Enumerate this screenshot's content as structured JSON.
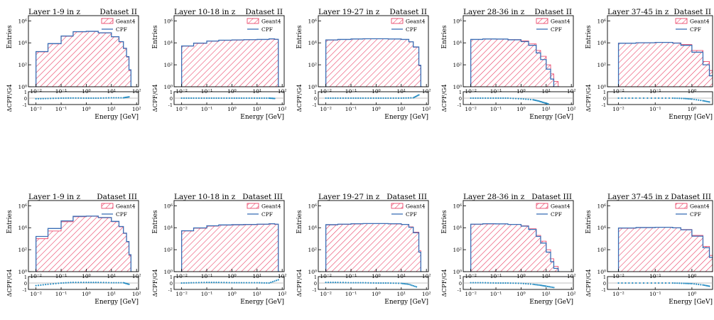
{
  "figure": {
    "row_datasets": [
      "Dataset II",
      "Dataset III"
    ],
    "layer_titles": [
      "Layer 1-9 in z",
      "Layer 10-18 in z",
      "Layer 19-27 in z",
      "Layer 28-36 in z",
      "Layer 37-45 in z"
    ],
    "main_ylabel": "Entries",
    "ratio_ylabel": "ΔCPF/G4",
    "xlabel": "Energy [GeV]",
    "legend": [
      {
        "name": "Geant4",
        "style": "hatched",
        "color": "#e8335a"
      },
      {
        "name": "CPF",
        "style": "line",
        "color": "#3b6fb6"
      }
    ],
    "ratio_marker_color": "#2a8fc4",
    "main_ytick_labels": [
      "10⁰",
      "10²",
      "10⁴",
      "10⁶"
    ],
    "ratio_ytick_labels": [
      "-1",
      "0",
      "1"
    ],
    "xtick_labels": [
      "10⁻²",
      "10⁻¹",
      "10⁰",
      "10¹",
      "10²"
    ]
  },
  "chart_data": [
    {
      "type": "area",
      "title": "Layer 1-9 in z",
      "dataset": "Dataset II",
      "xlabel": "Energy [GeV]",
      "ylabel": "Entries",
      "xscale": "log",
      "yscale": "log",
      "xlim": [
        0.005,
        120
      ],
      "ylim": [
        1,
        3000000
      ],
      "x": [
        0.01,
        0.03,
        0.1,
        0.3,
        1,
        3,
        10,
        20,
        30,
        40,
        50,
        60
      ],
      "series": [
        {
          "name": "Geant4",
          "values": [
            1500,
            8000,
            40000,
            100000,
            110000,
            80000,
            35000,
            12000,
            3000,
            500,
            30,
            1
          ]
        },
        {
          "name": "CPF",
          "values": [
            1600,
            8500,
            42000,
            105000,
            112000,
            82000,
            36000,
            13000,
            3200,
            550,
            35,
            1
          ]
        }
      ],
      "ratio": {
        "ylabel": "ΔCPF/G4",
        "ylim": [
          -1,
          1
        ],
        "x": [
          0.01,
          0.03,
          0.1,
          0.3,
          1,
          3,
          10,
          30,
          50
        ],
        "values": [
          -0.1,
          -0.05,
          0.0,
          0.02,
          0.0,
          0.0,
          0.05,
          0.05,
          0.2
        ]
      }
    },
    {
      "type": "area",
      "title": "Layer 10-18 in z",
      "dataset": "Dataset II",
      "xlabel": "Energy [GeV]",
      "ylabel": "Entries",
      "xscale": "log",
      "yscale": "log",
      "xlim": [
        0.005,
        120
      ],
      "ylim": [
        1,
        3000000
      ],
      "x": [
        0.01,
        0.03,
        0.1,
        0.3,
        1,
        3,
        10,
        30,
        50,
        70
      ],
      "series": [
        {
          "name": "Geant4",
          "values": [
            5000,
            9000,
            14000,
            17000,
            18000,
            19000,
            20000,
            22000,
            20000,
            1
          ]
        },
        {
          "name": "CPF",
          "values": [
            5200,
            9500,
            14500,
            17500,
            18500,
            19500,
            20500,
            23000,
            21000,
            1
          ]
        }
      ],
      "ratio": {
        "ylabel": "ΔCPF/G4",
        "ylim": [
          -1,
          1
        ],
        "x": [
          0.01,
          0.03,
          0.1,
          0.3,
          1,
          3,
          10,
          30,
          50
        ],
        "values": [
          0.0,
          0.0,
          0.0,
          0.0,
          0.0,
          0.0,
          0.0,
          0.0,
          -0.05
        ]
      }
    },
    {
      "type": "area",
      "title": "Layer 19-27 in z",
      "dataset": "Dataset II",
      "xlabel": "Energy [GeV]",
      "ylabel": "Entries",
      "xscale": "log",
      "yscale": "log",
      "xlim": [
        0.005,
        120
      ],
      "ylim": [
        1,
        3000000
      ],
      "x": [
        0.01,
        0.03,
        0.1,
        0.3,
        1,
        3,
        10,
        20,
        30,
        50,
        60
      ],
      "series": [
        {
          "name": "Geant4",
          "values": [
            18000,
            20000,
            22000,
            23000,
            23000,
            22000,
            20000,
            12000,
            4000,
            80,
            1
          ]
        },
        {
          "name": "CPF",
          "values": [
            18500,
            20500,
            22500,
            23500,
            23500,
            22500,
            20500,
            12500,
            4200,
            90,
            1
          ]
        }
      ],
      "ratio": {
        "ylabel": "ΔCPF/G4",
        "ylim": [
          -1,
          1
        ],
        "x": [
          0.01,
          0.03,
          0.1,
          0.3,
          1,
          3,
          10,
          30,
          50
        ],
        "values": [
          0.0,
          0.0,
          0.0,
          0.0,
          0.0,
          0.0,
          0.0,
          0.05,
          0.5
        ]
      }
    },
    {
      "type": "area",
      "title": "Layer 28-36 in z",
      "dataset": "Dataset II",
      "xlabel": "Energy [GeV]",
      "ylabel": "Entries",
      "xscale": "log",
      "yscale": "log",
      "xlim": [
        0.005,
        120
      ],
      "ylim": [
        1,
        3000000
      ],
      "x": [
        0.01,
        0.03,
        0.1,
        0.3,
        1,
        2,
        4,
        6,
        10,
        15,
        20,
        30
      ],
      "series": [
        {
          "name": "Geant4",
          "values": [
            20000,
            22000,
            22000,
            20000,
            15000,
            8000,
            2000,
            600,
            100,
            15,
            3,
            1
          ]
        },
        {
          "name": "CPF",
          "values": [
            20500,
            22500,
            22000,
            19000,
            13000,
            6000,
            1200,
            300,
            40,
            5,
            1,
            1
          ]
        }
      ],
      "ratio": {
        "ylabel": "ΔCPF/G4",
        "ylim": [
          -1,
          1
        ],
        "x": [
          0.01,
          0.03,
          0.1,
          0.3,
          1,
          3,
          5,
          8,
          12
        ],
        "values": [
          0.0,
          0.0,
          0.0,
          0.0,
          -0.1,
          -0.25,
          -0.45,
          -0.7,
          -0.9
        ]
      }
    },
    {
      "type": "area",
      "title": "Layer 37-45 in z",
      "dataset": "Dataset II",
      "xlabel": "Energy [GeV]",
      "ylabel": "Entries",
      "xscale": "log",
      "yscale": "log",
      "xlim": [
        0.005,
        5
      ],
      "x": [
        0.01,
        0.03,
        0.1,
        0.3,
        0.5,
        1,
        2,
        3,
        4
      ],
      "series": [
        {
          "name": "Geant4",
          "values": [
            9000,
            10000,
            11000,
            10000,
            7000,
            2000,
            200,
            30,
            5
          ]
        },
        {
          "name": "CPF",
          "values": [
            9200,
            10200,
            11000,
            9500,
            6000,
            1400,
            100,
            10,
            2
          ]
        }
      ],
      "ratio": {
        "ylabel": "ΔCPF/G4",
        "ylim": [
          -1,
          1
        ],
        "x": [
          0.01,
          0.03,
          0.1,
          0.3,
          0.6,
          1,
          2,
          3
        ],
        "values": [
          0.0,
          0.0,
          0.0,
          0.0,
          -0.05,
          -0.15,
          -0.4,
          -0.6
        ]
      }
    },
    {
      "type": "area",
      "title": "Layer 1-9 in z",
      "dataset": "Dataset III",
      "xlabel": "Energy [GeV]",
      "ylabel": "Entries",
      "xscale": "log",
      "yscale": "log",
      "xlim": [
        0.005,
        120
      ],
      "ylim": [
        1,
        3000000
      ],
      "x": [
        0.01,
        0.03,
        0.1,
        0.3,
        1,
        3,
        10,
        20,
        30,
        40,
        50,
        60
      ],
      "series": [
        {
          "name": "Geant4",
          "values": [
            1000,
            5000,
            35000,
            100000,
            110000,
            80000,
            35000,
            12000,
            3000,
            500,
            30,
            1
          ]
        },
        {
          "name": "CPF",
          "values": [
            1600,
            8500,
            42000,
            110000,
            115000,
            85000,
            38000,
            13000,
            3200,
            550,
            35,
            1
          ]
        }
      ],
      "ratio": {
        "ylabel": "ΔCPF/G4",
        "ylim": [
          -1,
          1
        ],
        "x": [
          0.01,
          0.03,
          0.1,
          0.3,
          1,
          3,
          10,
          30,
          50
        ],
        "values": [
          -0.4,
          -0.2,
          0.0,
          0.1,
          0.1,
          0.1,
          0.05,
          0.05,
          -0.2
        ]
      }
    },
    {
      "type": "area",
      "title": "Layer 10-18 in z",
      "dataset": "Dataset III",
      "xlabel": "Energy [GeV]",
      "ylabel": "Entries",
      "xscale": "log",
      "yscale": "log",
      "xlim": [
        0.005,
        120
      ],
      "ylim": [
        1,
        3000000
      ],
      "x": [
        0.01,
        0.03,
        0.1,
        0.3,
        1,
        3,
        10,
        30,
        50,
        70
      ],
      "series": [
        {
          "name": "Geant4",
          "values": [
            5000,
            9000,
            14000,
            17000,
            18000,
            19000,
            20000,
            22000,
            20000,
            1
          ]
        },
        {
          "name": "CPF",
          "values": [
            5300,
            9600,
            15000,
            18000,
            19000,
            20000,
            21000,
            23000,
            21000,
            1
          ]
        }
      ],
      "ratio": {
        "ylabel": "ΔCPF/G4",
        "ylim": [
          -1,
          1
        ],
        "x": [
          0.01,
          0.03,
          0.1,
          0.3,
          1,
          3,
          10,
          30,
          70
        ],
        "values": [
          0.0,
          0.05,
          0.1,
          0.1,
          0.05,
          0.05,
          0.05,
          0.0,
          0.5
        ]
      }
    },
    {
      "type": "area",
      "title": "Layer 19-27 in z",
      "dataset": "Dataset III",
      "xlabel": "Energy [GeV]",
      "ylabel": "Entries",
      "xscale": "log",
      "yscale": "log",
      "xlim": [
        0.005,
        120
      ],
      "ylim": [
        1,
        3000000
      ],
      "x": [
        0.01,
        0.03,
        0.1,
        0.3,
        1,
        3,
        10,
        20,
        30,
        50,
        60
      ],
      "series": [
        {
          "name": "Geant4",
          "values": [
            18000,
            20000,
            22000,
            23000,
            23000,
            22000,
            20000,
            12000,
            4000,
            80,
            1
          ]
        },
        {
          "name": "CPF",
          "values": [
            19000,
            21000,
            23000,
            24000,
            24000,
            23000,
            20000,
            11000,
            3500,
            60,
            1
          ]
        }
      ],
      "ratio": {
        "ylabel": "ΔCPF/G4",
        "ylim": [
          -1,
          1
        ],
        "x": [
          0.01,
          0.03,
          0.1,
          0.3,
          1,
          3,
          10,
          20,
          40
        ],
        "values": [
          0.1,
          0.1,
          0.05,
          0.05,
          0.0,
          0.0,
          -0.05,
          -0.2,
          -0.6
        ]
      }
    },
    {
      "type": "area",
      "title": "Layer 28-36 in z",
      "dataset": "Dataset III",
      "xlabel": "Energy [GeV]",
      "ylabel": "Entries",
      "xscale": "log",
      "yscale": "log",
      "xlim": [
        0.005,
        120
      ],
      "ylim": [
        1,
        3000000
      ],
      "x": [
        0.01,
        0.03,
        0.1,
        0.3,
        1,
        2,
        4,
        6,
        10,
        15,
        20,
        30
      ],
      "series": [
        {
          "name": "Geant4",
          "values": [
            20000,
            22000,
            22000,
            20000,
            15000,
            8000,
            2000,
            600,
            100,
            15,
            3,
            1
          ]
        },
        {
          "name": "CPF",
          "values": [
            21000,
            23000,
            22500,
            20000,
            14000,
            7000,
            1600,
            400,
            60,
            8,
            2,
            1
          ]
        }
      ],
      "ratio": {
        "ylabel": "ΔCPF/G4",
        "ylim": [
          -1,
          1
        ],
        "x": [
          0.01,
          0.03,
          0.1,
          0.3,
          1,
          3,
          6,
          10,
          20
        ],
        "values": [
          0.05,
          0.05,
          0.0,
          0.0,
          -0.05,
          -0.2,
          -0.35,
          -0.5,
          -0.7
        ]
      }
    },
    {
      "type": "area",
      "title": "Layer 37-45 in z",
      "dataset": "Dataset III",
      "xlabel": "Energy [GeV]",
      "ylabel": "Entries",
      "xscale": "log",
      "yscale": "log",
      "xlim": [
        0.005,
        5
      ],
      "x": [
        0.01,
        0.03,
        0.1,
        0.3,
        0.5,
        1,
        2,
        3,
        4
      ],
      "series": [
        {
          "name": "Geant4",
          "values": [
            9000,
            10000,
            11000,
            10000,
            7000,
            2000,
            200,
            30,
            5
          ]
        },
        {
          "name": "CPF",
          "values": [
            9500,
            10500,
            11000,
            9800,
            6500,
            1700,
            150,
            20,
            3
          ]
        }
      ],
      "ratio": {
        "ylabel": "ΔCPF/G4",
        "ylim": [
          -1,
          1
        ],
        "x": [
          0.01,
          0.03,
          0.1,
          0.3,
          0.6,
          1,
          2,
          3
        ],
        "values": [
          0.0,
          0.0,
          0.0,
          0.0,
          -0.05,
          -0.1,
          -0.3,
          -0.5
        ]
      }
    }
  ]
}
